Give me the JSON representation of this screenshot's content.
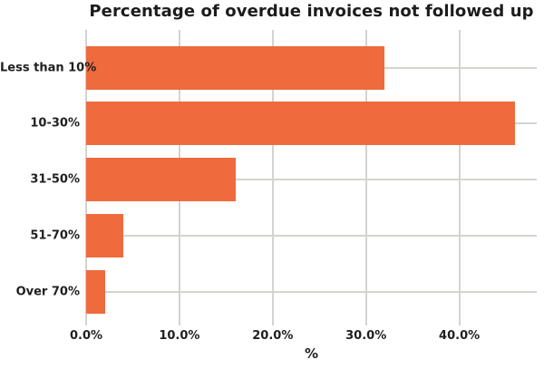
{
  "chart_data": {
    "type": "bar",
    "orientation": "horizontal",
    "title": "Percentage of overdue invoices not followed up",
    "xlabel": "%",
    "ylabel": "",
    "categories": [
      "Less than 10%",
      "10-30%",
      "31-50%",
      "51-70%",
      "Over 70%"
    ],
    "values": [
      32,
      46,
      16,
      4,
      2
    ],
    "x_ticks": [
      0,
      10,
      20,
      30,
      40
    ],
    "x_tick_labels": [
      "0.0%",
      "10.0%",
      "20.0%",
      "30.0%",
      "40.0%"
    ],
    "xlim": [
      0,
      48.3
    ],
    "grid": true,
    "legend": false,
    "bar_color": "#ef6a3c",
    "grid_color": "#d4d4cf",
    "text_color": "#1f1f1f",
    "background_color": "#ffffff"
  }
}
